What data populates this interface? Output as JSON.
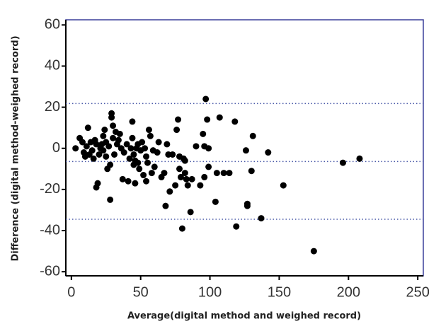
{
  "chart_data": {
    "type": "scatter",
    "x_label": "Average(digital method and weighed record)",
    "y_label": "Difference (digital method-weighed record)",
    "color": "#000000",
    "frame_color": "#3a3f9a",
    "reference_line_color": "#4a5aa8",
    "xlim": [
      -4,
      254
    ],
    "ylim": [
      -62,
      62.5
    ],
    "xticks": [
      0,
      50,
      100,
      150,
      200,
      250
    ],
    "yticks": [
      -60,
      -40,
      -20,
      0,
      20,
      40,
      60
    ],
    "reference_lines": [
      21.8,
      -6.4,
      -34.5
    ],
    "x": [
      3,
      6,
      8,
      9,
      10,
      11,
      12,
      13,
      14,
      15,
      16,
      17,
      18,
      18,
      19,
      20,
      21,
      22,
      23,
      23,
      24,
      25,
      25,
      26,
      27,
      28,
      28,
      29,
      29,
      30,
      30,
      31,
      32,
      33,
      34,
      35,
      36,
      37,
      38,
      40,
      41,
      42,
      43,
      44,
      44,
      45,
      45,
      46,
      46,
      47,
      48,
      48,
      49,
      50,
      51,
      52,
      53,
      54,
      54,
      55,
      56,
      57,
      58,
      59,
      60,
      62,
      63,
      65,
      67,
      68,
      69,
      70,
      71,
      73,
      75,
      76,
      77,
      78,
      78,
      79,
      80,
      81,
      82,
      82,
      83,
      84,
      86,
      87,
      90,
      93,
      95,
      96,
      96,
      97,
      98,
      99,
      99,
      104,
      105,
      107,
      110,
      114,
      118,
      119,
      126,
      127,
      127,
      130,
      131,
      137,
      142,
      153,
      175,
      196,
      208
    ],
    "values": [
      0,
      5,
      3,
      -2,
      -4,
      1,
      10,
      -3,
      3,
      -1,
      -5,
      4,
      2,
      -19,
      -17,
      -3,
      0,
      2,
      6,
      -1,
      9,
      3,
      -4,
      -10,
      1,
      -8,
      -25,
      15,
      17,
      5,
      11,
      -3,
      8,
      2,
      4,
      7,
      0,
      -15,
      -2,
      2,
      -16,
      -5,
      0,
      5,
      13,
      -8,
      -3,
      -6,
      -17,
      0,
      2,
      -7,
      -10,
      -1,
      3,
      -13,
      0,
      -4,
      -16,
      -7,
      9,
      6,
      -12,
      -1,
      -9,
      -2,
      3,
      -14,
      -12,
      -28,
      2,
      -3,
      -21,
      -3,
      -18,
      9,
      14,
      -10,
      -4,
      -14,
      -39,
      -5,
      -12,
      -6,
      -15,
      -18,
      -31,
      -15,
      1,
      -18,
      7,
      -14,
      1,
      24,
      14,
      0,
      -9,
      -26,
      -12,
      15,
      -12,
      -12,
      13,
      -38,
      -1,
      -28,
      -27,
      -11,
      6,
      -34,
      -2,
      -18,
      -50,
      -7,
      -5
    ]
  }
}
